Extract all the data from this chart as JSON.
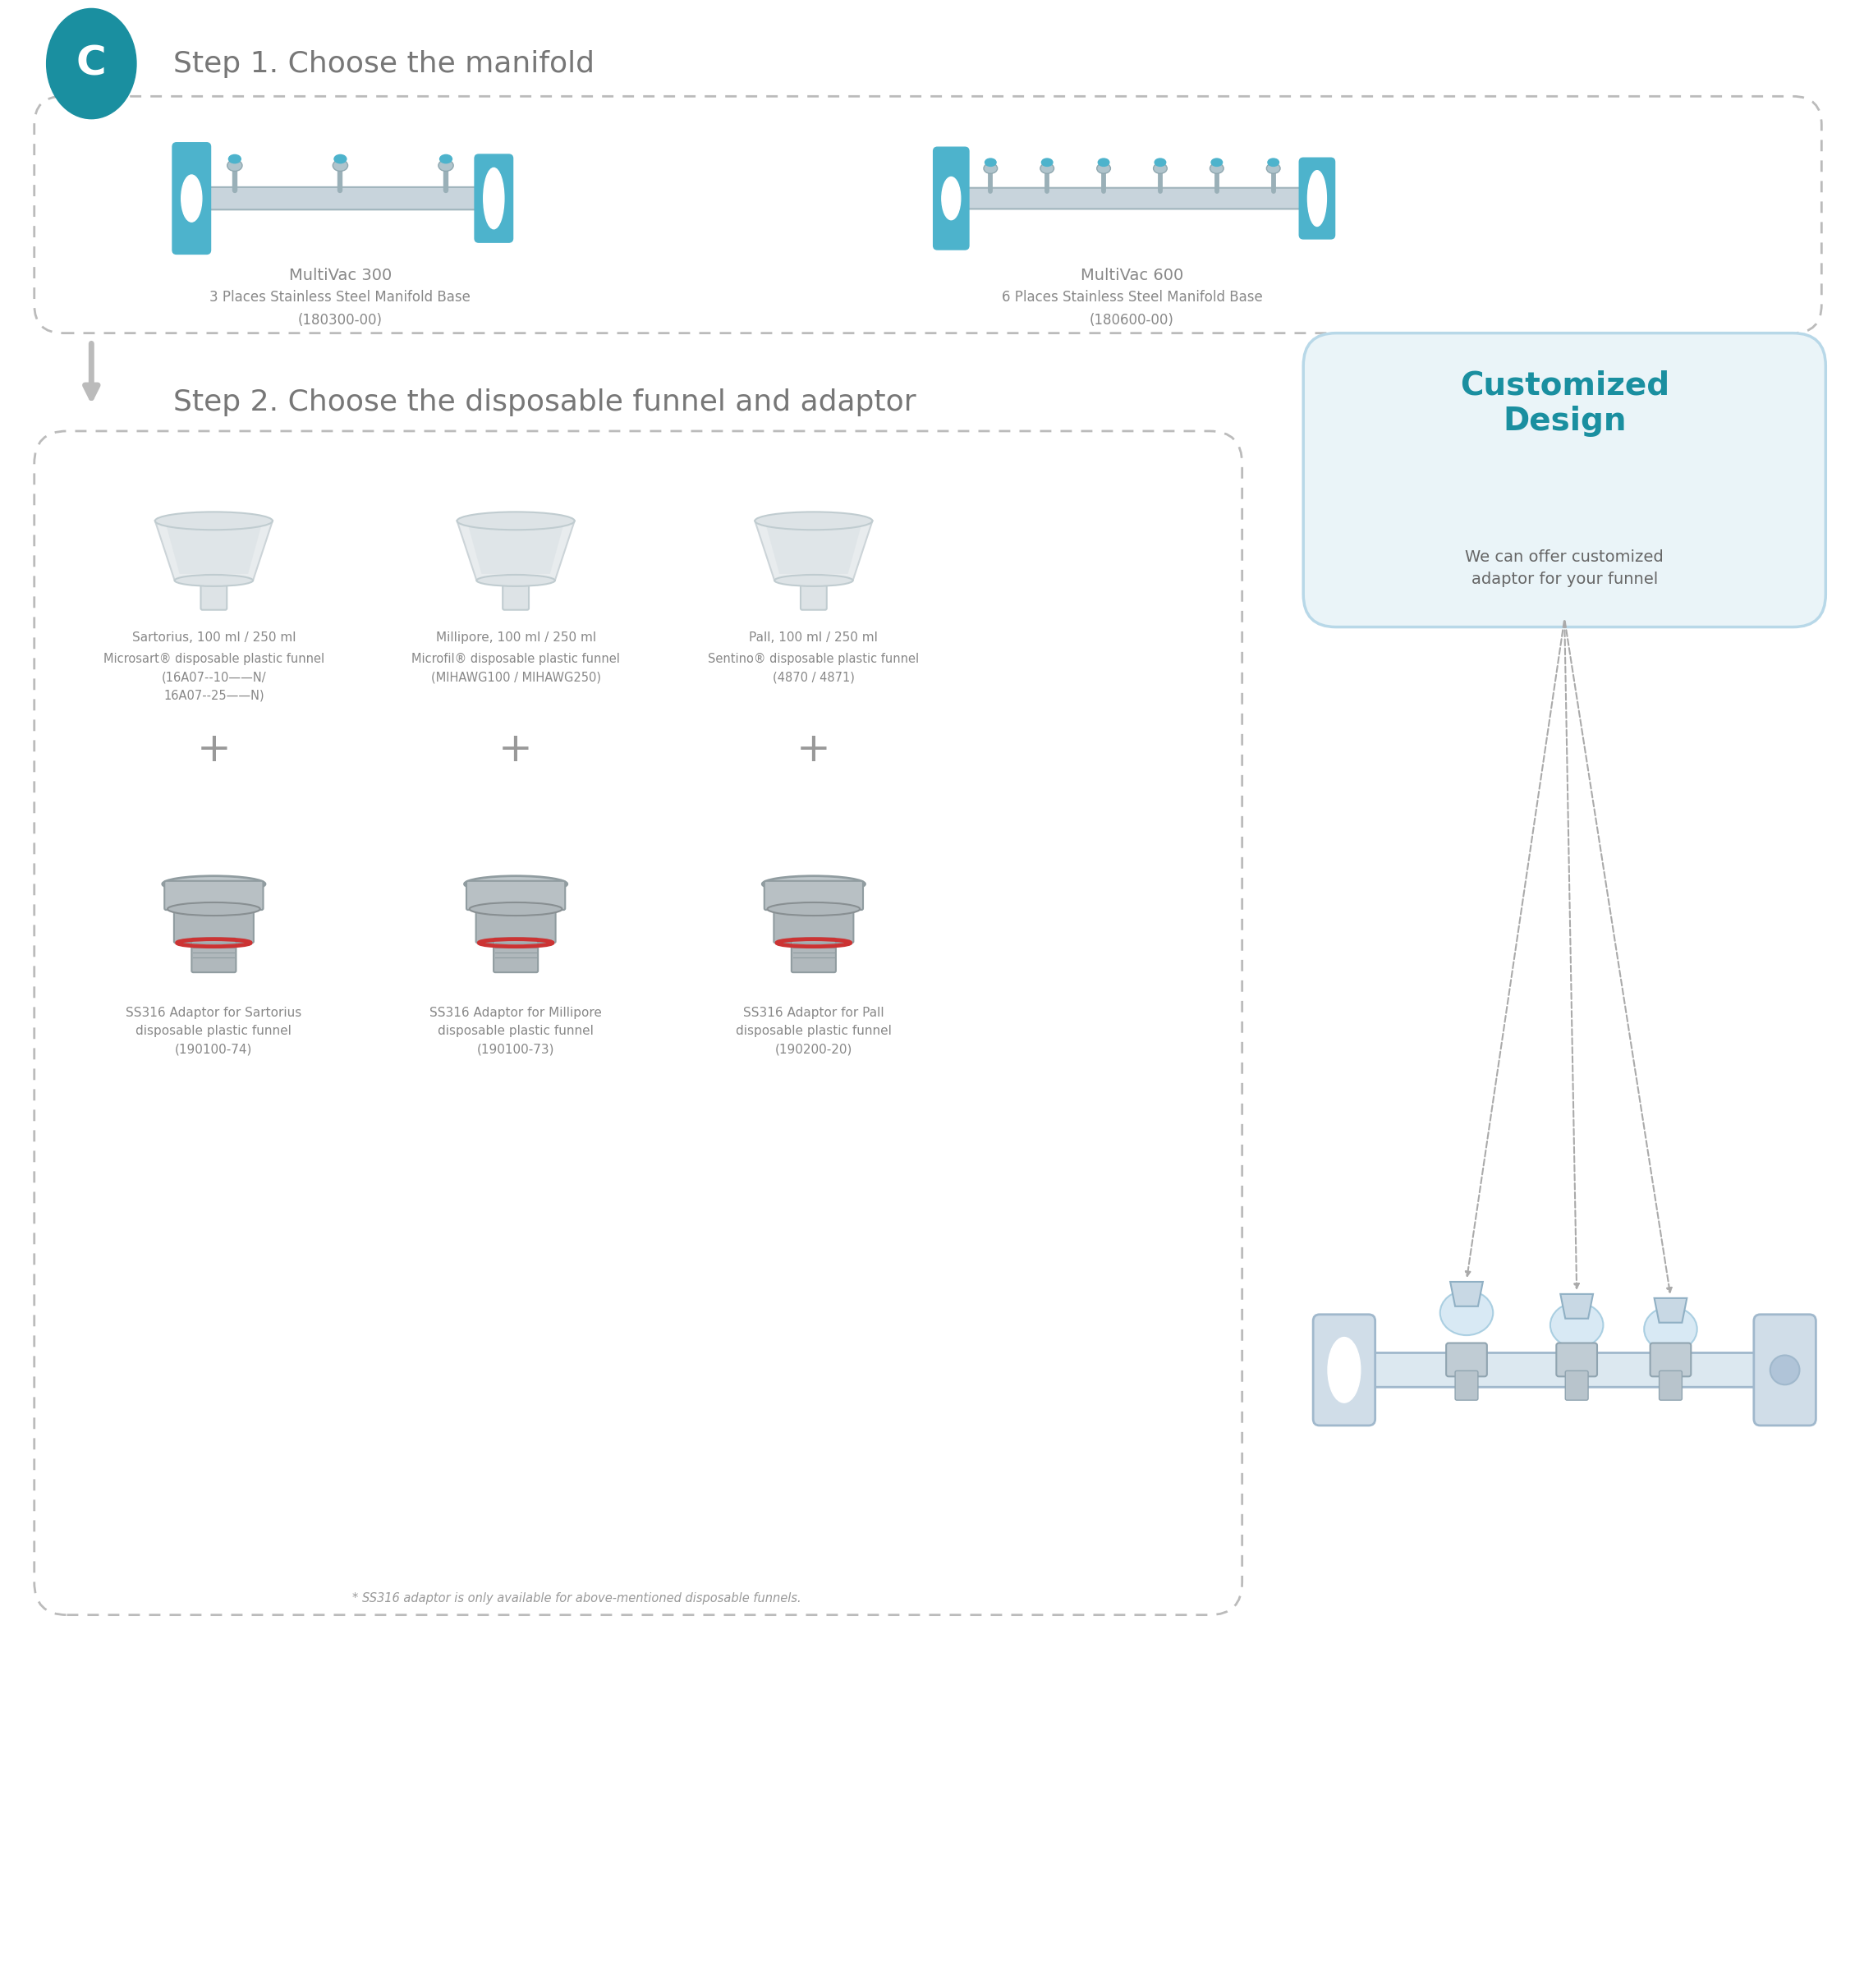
{
  "bg_color": "#ffffff",
  "title_color": "#777777",
  "step1_title": "Step 1. Choose the manifold",
  "step2_title": "Step 2. Choose the disposable funnel and adaptor",
  "circle_color": "#1a8fa0",
  "circle_letter": "C",
  "arrow_color": "#bbbbbb",
  "product_name_color": "#888888",
  "product_desc_color": "#888888",
  "manifold_300_name": "MultiVac 300",
  "manifold_300_desc": "3 Places Stainless Steel Manifold Base\n(180300-00)",
  "manifold_600_name": "MultiVac 600",
  "manifold_600_desc": "6 Places Stainless Steel Manifold Base\n(180600-00)",
  "funnel1_name": "Sartorius, 100 ml / 250 ml",
  "funnel1_desc": "Microsart® disposable plastic funnel\n(16A07--10——N/\n16A07--25——N)",
  "funnel2_name": "Millipore, 100 ml / 250 ml",
  "funnel2_desc": "Microfil® disposable plastic funnel\n(MIHAWG100 / MIHAWG250)",
  "funnel3_name": "Pall, 100 ml / 250 ml",
  "funnel3_desc": "Sentino® disposable plastic funnel\n(4870 / 4871)",
  "adaptor1_name": "SS316 Adaptor for Sartorius\ndisposable plastic funnel\n(190100-74)",
  "adaptor2_name": "SS316 Adaptor for Millipore\ndisposable plastic funnel\n(190100-73)",
  "adaptor3_name": "SS316 Adaptor for Pall\ndisposable plastic funnel\n(190200-20)",
  "custom_title": "Customized\nDesign",
  "custom_title_color": "#1a8fa0",
  "custom_desc": "We can offer customized\nadaptor for your funnel",
  "custom_desc_color": "#666666",
  "footnote": "* SS316 adaptor is only available for above-mentioned disposable funnels.",
  "footnote_color": "#999999",
  "plus_color": "#999999",
  "dashed_color": "#bbbbbb",
  "manifold_blue": "#4db3cc",
  "manifold_tube": "#c8d4dc",
  "manifold_valve": "#8ab0c0"
}
